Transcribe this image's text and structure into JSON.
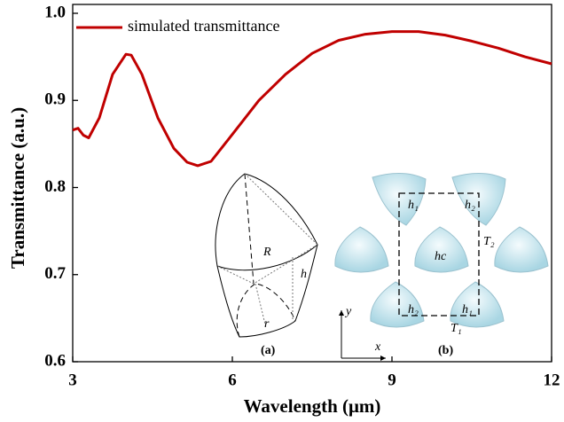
{
  "chart_data": {
    "type": "line",
    "xlabel": "Wavelength (μm)",
    "ylabel": "Transmittance (a.u.)",
    "xlim": [
      3,
      12
    ],
    "xticks": [
      3,
      6,
      9,
      12
    ],
    "ylim": [
      0.6,
      1.0
    ],
    "yticks": [
      0.6,
      0.7,
      0.8,
      0.9,
      {
        "value": 1.0,
        "label": "1.0"
      }
    ],
    "legend": "top-left",
    "series": [
      {
        "name": "simulated transmittance",
        "color": "#c00000",
        "x": [
          3.0,
          3.1,
          3.2,
          3.3,
          3.5,
          3.75,
          4.0,
          4.1,
          4.3,
          4.6,
          4.9,
          5.15,
          5.35,
          5.6,
          6.0,
          6.5,
          7.0,
          7.5,
          8.0,
          8.5,
          9.0,
          9.5,
          10.0,
          10.5,
          11.0,
          11.5,
          12.0
        ],
        "values": [
          0.866,
          0.868,
          0.86,
          0.857,
          0.88,
          0.93,
          0.953,
          0.952,
          0.93,
          0.88,
          0.845,
          0.829,
          0.825,
          0.83,
          0.861,
          0.9,
          0.93,
          0.954,
          0.969,
          0.976,
          0.979,
          0.979,
          0.975,
          0.968,
          0.96,
          0.95,
          0.942
        ]
      }
    ],
    "annotations": [
      "R",
      "h",
      "r",
      "(a)",
      "h₁",
      "h₂",
      "hc",
      "T₂",
      "h₂",
      "h₁",
      "T₁",
      "y",
      "x",
      "(b)"
    ]
  }
}
